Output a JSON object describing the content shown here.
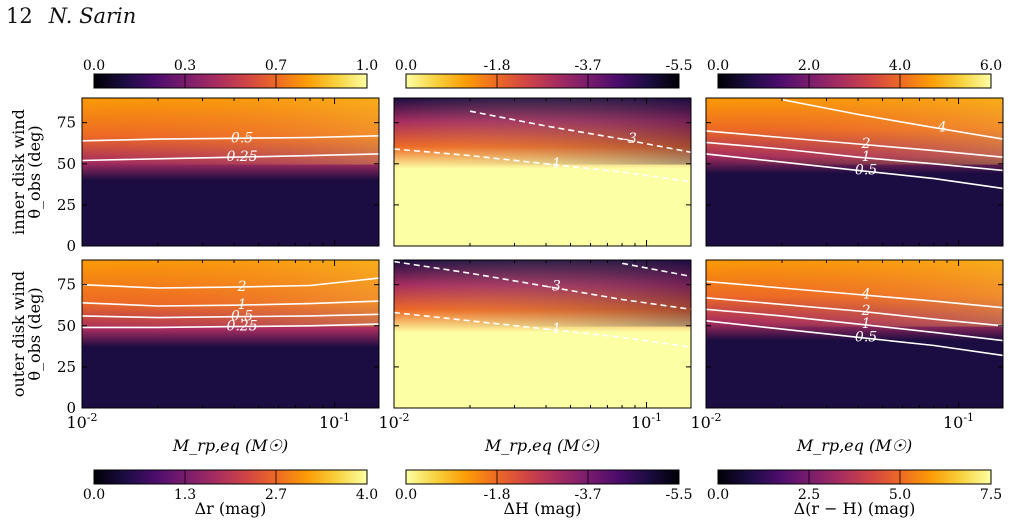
{
  "page": {
    "number": "12",
    "author": "N. Sarin"
  },
  "row_labels": [
    "inner disk wind",
    "outer disk wind"
  ],
  "colormaps": {
    "inferno": [
      "#000004",
      "#1b0c41",
      "#4a0c6b",
      "#781c6d",
      "#a52c60",
      "#cf4446",
      "#ed6925",
      "#fb9b06",
      "#f7d13d",
      "#fcffa4"
    ],
    "inferno_r": [
      "#fcffa4",
      "#f7d13d",
      "#fb9b06",
      "#ed6925",
      "#cf4446",
      "#a52c60",
      "#781c6d",
      "#4a0c6b",
      "#1b0c41",
      "#000004"
    ]
  },
  "chart_data": [
    {
      "type": "heatmap",
      "row": 0,
      "col": 0,
      "quantity": "Δr",
      "xscale": "log",
      "xlim": [
        0.01,
        0.15
      ],
      "ylim": [
        0,
        90
      ],
      "ylabel": "θ_obs (deg)",
      "xlabel": "",
      "yticks": [
        0,
        25,
        50,
        75
      ],
      "xticks": [],
      "cmap": "inferno",
      "vmin": 0,
      "vmax": 1,
      "colorbar": {
        "position": "top",
        "ticks": [
          "0.0",
          "0.3",
          "0.7",
          "1.0"
        ],
        "label": ""
      },
      "contours": [
        {
          "level": "0.5",
          "style": "solid",
          "y": [
            64,
            65,
            65.5,
            66,
            67
          ]
        },
        {
          "level": "0.25",
          "style": "solid",
          "y": [
            52,
            53,
            54,
            55,
            56
          ]
        }
      ]
    },
    {
      "type": "heatmap",
      "row": 0,
      "col": 1,
      "quantity": "ΔH",
      "xscale": "log",
      "xlim": [
        0.01,
        0.15
      ],
      "ylim": [
        0,
        90
      ],
      "ylabel": "",
      "xlabel": "",
      "yticks": [],
      "xticks": [],
      "cmap": "inferno_r",
      "vmin": -5.5,
      "vmax": 0,
      "colorbar": {
        "position": "top",
        "ticks": [
          "0.0",
          "-1.8",
          "-3.7",
          "-5.5"
        ],
        "label": ""
      },
      "contours": [
        {
          "level": "-3",
          "style": "dashed",
          "y": [
            null,
            82,
            73,
            65,
            57
          ]
        },
        {
          "level": "-1",
          "style": "dashed",
          "y": [
            59,
            55,
            50,
            45,
            39
          ]
        }
      ]
    },
    {
      "type": "heatmap",
      "row": 0,
      "col": 2,
      "quantity": "Δ(r−H)",
      "xscale": "log",
      "xlim": [
        0.01,
        0.15
      ],
      "ylim": [
        0,
        90
      ],
      "ylabel": "",
      "xlabel": "",
      "yticks": [],
      "xticks": [],
      "cmap": "inferno",
      "vmin": 0,
      "vmax": 6,
      "colorbar": {
        "position": "top",
        "ticks": [
          "0.0",
          "2.0",
          "4.0",
          "6.0"
        ],
        "label": ""
      },
      "contours": [
        {
          "level": "4",
          "style": "solid",
          "y": [
            null,
            89,
            80,
            72,
            65
          ]
        },
        {
          "level": "2",
          "style": "solid",
          "y": [
            70,
            66,
            62,
            58,
            54
          ]
        },
        {
          "level": "1",
          "style": "solid",
          "y": [
            63,
            59,
            54,
            50,
            46
          ]
        },
        {
          "level": "0.5",
          "style": "solid",
          "y": [
            56,
            51,
            46,
            41,
            35
          ]
        }
      ]
    },
    {
      "type": "heatmap",
      "row": 1,
      "col": 0,
      "quantity": "Δr",
      "xscale": "log",
      "xlim": [
        0.01,
        0.15
      ],
      "ylim": [
        0,
        90
      ],
      "ylabel": "θ_obs (deg)",
      "xlabel": "M_rp,eq (M☉)",
      "yticks": [
        0,
        25,
        50,
        75
      ],
      "xticks": [
        "10^-2",
        "10^-1"
      ],
      "cmap": "inferno",
      "vmin": 0,
      "vmax": 4,
      "colorbar": {
        "position": "bottom",
        "ticks": [
          "0.0",
          "1.3",
          "2.7",
          "4.0"
        ],
        "label": "Δr (mag)"
      },
      "contours": [
        {
          "level": "2",
          "style": "solid",
          "y": [
            75,
            73,
            73.5,
            74.5,
            79
          ]
        },
        {
          "level": "1",
          "style": "solid",
          "y": [
            64,
            62,
            62.5,
            63.5,
            65
          ]
        },
        {
          "level": "0.5",
          "style": "solid",
          "y": [
            56,
            55,
            55.5,
            56,
            57
          ]
        },
        {
          "level": "0.25",
          "style": "solid",
          "y": [
            49,
            49,
            49.5,
            50,
            51
          ]
        }
      ]
    },
    {
      "type": "heatmap",
      "row": 1,
      "col": 1,
      "quantity": "ΔH",
      "xscale": "log",
      "xlim": [
        0.01,
        0.15
      ],
      "ylim": [
        0,
        90
      ],
      "ylabel": "",
      "xlabel": "M_rp,eq (M☉)",
      "yticks": [],
      "xticks": [
        "10^-2",
        "10^-1"
      ],
      "cmap": "inferno_r",
      "vmin": -5.5,
      "vmax": 0,
      "colorbar": {
        "position": "bottom",
        "ticks": [
          "0.0",
          "-1.8",
          "-3.7",
          "-5.5"
        ],
        "label": "ΔH (mag)"
      },
      "contours": [
        {
          "level": "-3",
          "style": "dashed",
          "y": [
            89,
            82,
            74,
            66,
            60
          ]
        },
        {
          "level": "-1",
          "style": "dashed",
          "y": [
            58,
            53,
            48,
            43,
            37
          ]
        },
        {
          "level": "-5",
          "style": "dashed",
          "y": [
            null,
            null,
            null,
            88,
            80
          ]
        }
      ]
    },
    {
      "type": "heatmap",
      "row": 1,
      "col": 2,
      "quantity": "Δ(r−H)",
      "xscale": "log",
      "xlim": [
        0.01,
        0.15
      ],
      "ylim": [
        0,
        90
      ],
      "ylabel": "",
      "xlabel": "M_rp,eq (M☉)",
      "yticks": [],
      "xticks": [
        "10^-2",
        "10^-1"
      ],
      "cmap": "inferno",
      "vmin": 0,
      "vmax": 7.5,
      "colorbar": {
        "position": "bottom",
        "ticks": [
          "0.0",
          "2.5",
          "5.0",
          "7.5"
        ],
        "label": "Δ(r − H) (mag)"
      },
      "contours": [
        {
          "level": "4",
          "style": "solid",
          "y": [
            77,
            73,
            69,
            65,
            61
          ]
        },
        {
          "level": "2",
          "style": "solid",
          "y": [
            67,
            63,
            59,
            54,
            50
          ]
        },
        {
          "level": "1",
          "style": "solid",
          "y": [
            60,
            56,
            51,
            46,
            41
          ]
        },
        {
          "level": "0.5",
          "style": "solid",
          "y": [
            53,
            48,
            43,
            38,
            32
          ]
        }
      ]
    }
  ]
}
